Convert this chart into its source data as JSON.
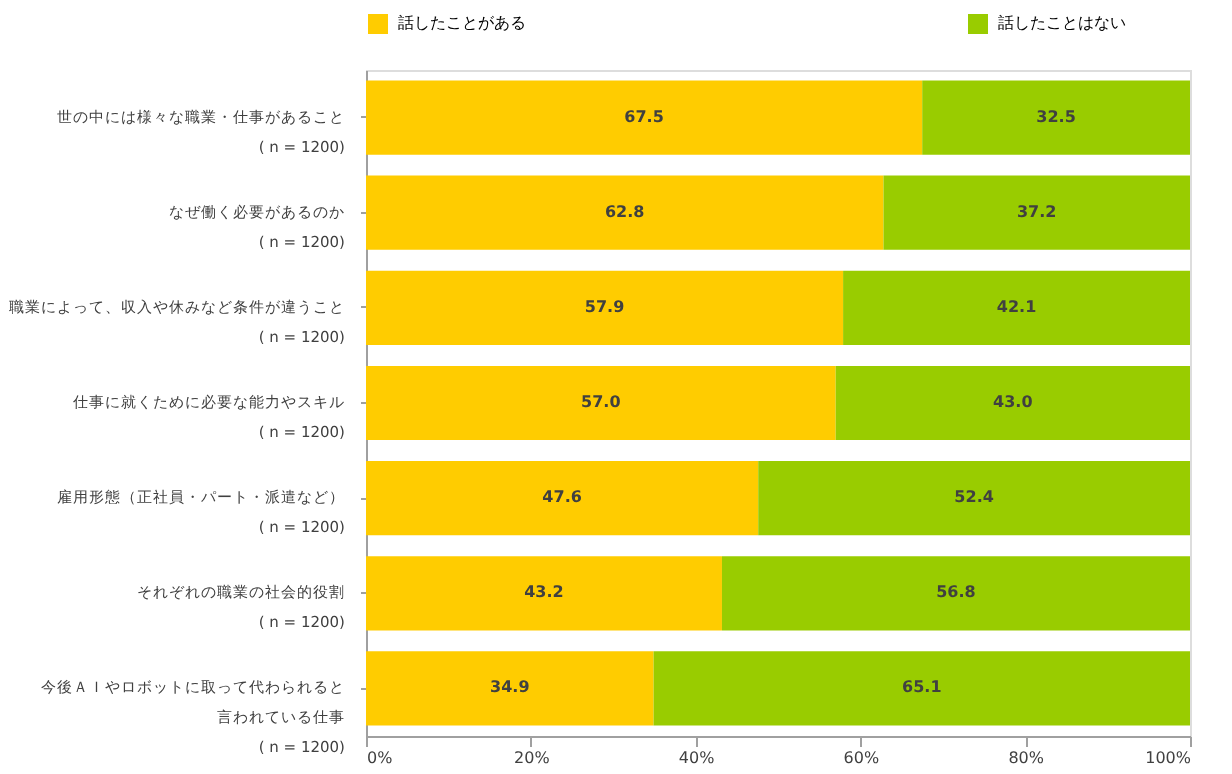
{
  "chart_data": {
    "type": "bar",
    "orientation": "horizontal",
    "stacked": true,
    "categories": [
      "世の中には様々な職業・仕事があること\n( n = 1200)",
      "なぜ働く必要があるのか\n( n = 1200)",
      "職業によって、収入や休みなど条件が違うこと\n( n = 1200)",
      "仕事に就くために必要な能力やスキル\n( n = 1200)",
      "雇用形態（正社員・パート・派遣など）\n( n = 1200)",
      "それぞれの職業の社会的役割\n( n = 1200)",
      "今後ＡＩやロボットに取って代わられると言われている仕事\n( n = 1200)"
    ],
    "series": [
      {
        "name": "話したことがある",
        "color": "#ffcc00",
        "values": [
          67.5,
          62.8,
          57.9,
          57.0,
          47.6,
          43.2,
          34.9
        ],
        "value_labels": [
          "67.5",
          "62.8",
          "57.9",
          "57.0",
          "47.6",
          "43.2",
          "34.9"
        ]
      },
      {
        "name": "話したことはない",
        "color": "#99cc00",
        "values": [
          32.5,
          37.2,
          42.1,
          43.0,
          52.4,
          56.8,
          65.1
        ],
        "value_labels": [
          "32.5",
          "37.2",
          "42.1",
          "43.0",
          "52.4",
          "56.8",
          "65.1"
        ]
      }
    ],
    "xlim": [
      0,
      100
    ],
    "xticks": [
      {
        "value": 0,
        "label": "0%"
      },
      {
        "value": 20,
        "label": "20%"
      },
      {
        "value": 40,
        "label": "40%"
      },
      {
        "value": 60,
        "label": "60%"
      },
      {
        "value": 80,
        "label": "80%"
      },
      {
        "value": 100,
        "label": "100%"
      }
    ],
    "legend": "top",
    "grid": false
  }
}
